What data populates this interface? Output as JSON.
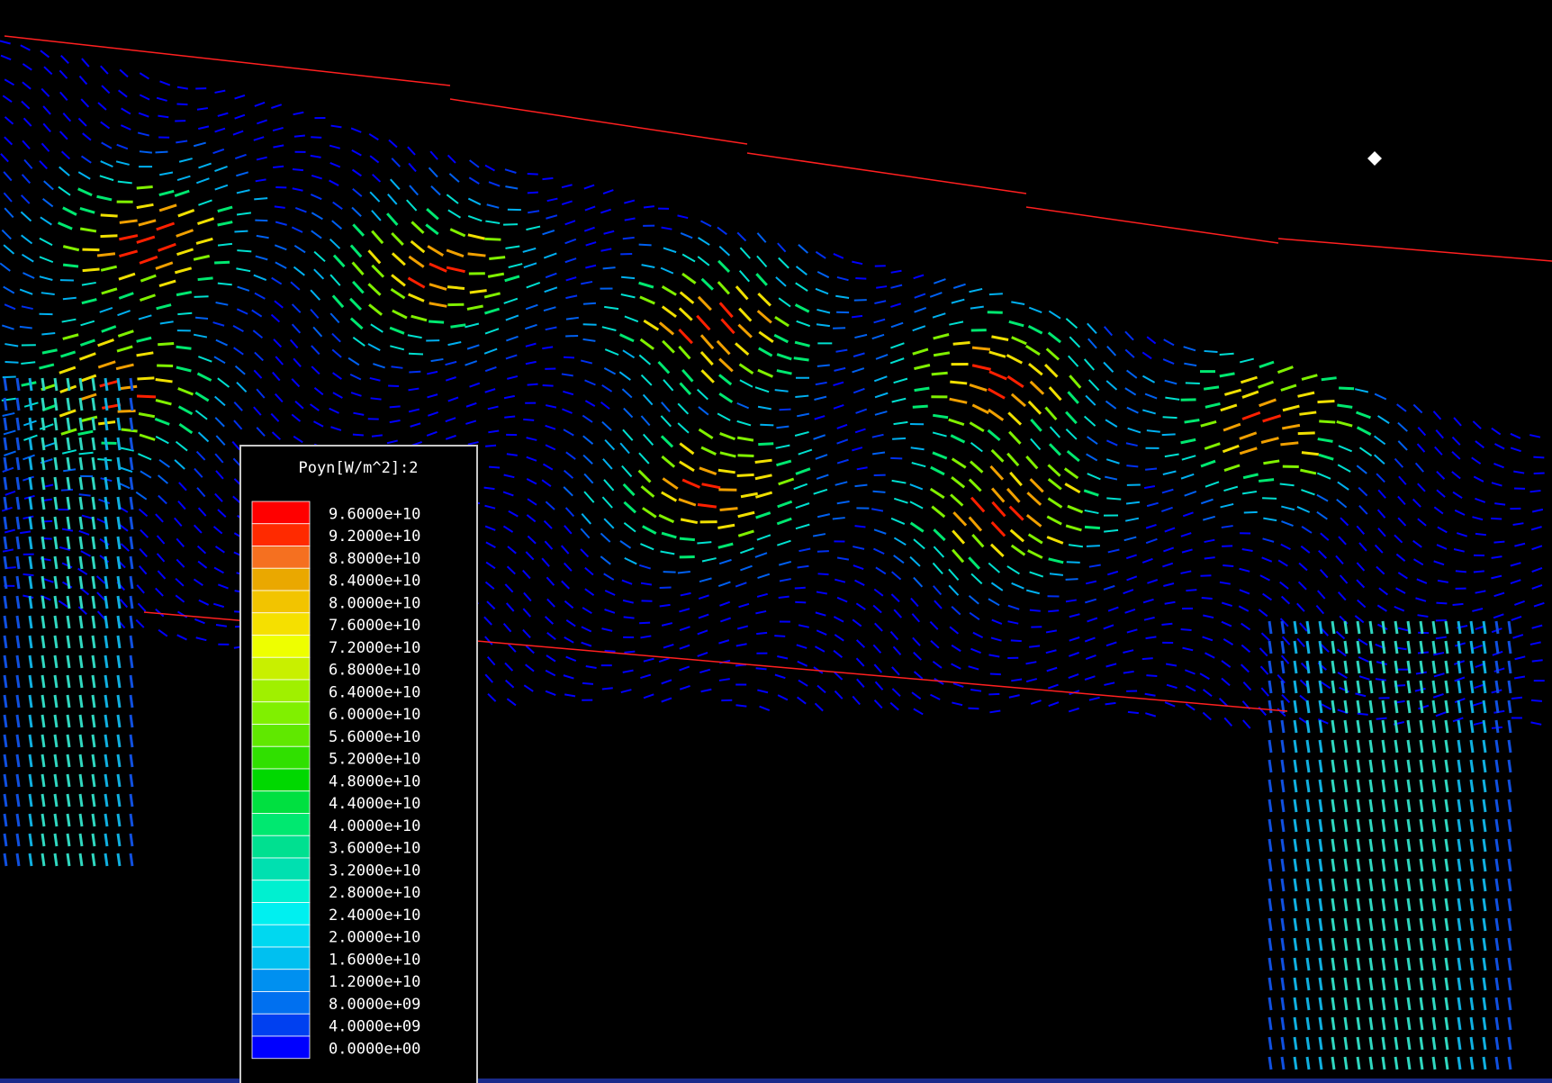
{
  "chart_data": {
    "type": "legend",
    "title": "Poyn[W/m^2]:2",
    "levels": [
      {
        "value": 96000000000,
        "label": "9.6000e+10",
        "color": "#ff0000"
      },
      {
        "value": 92000000000,
        "label": "9.2000e+10",
        "color": "#ff2a00"
      },
      {
        "value": 88000000000,
        "label": "8.8000e+10",
        "color": "#f57020"
      },
      {
        "value": 84000000000,
        "label": "8.4000e+10",
        "color": "#eaa800"
      },
      {
        "value": 80000000000,
        "label": "8.0000e+10",
        "color": "#f2c400"
      },
      {
        "value": 76000000000,
        "label": "7.6000e+10",
        "color": "#f5e000"
      },
      {
        "value": 72000000000,
        "label": "7.2000e+10",
        "color": "#eeff00"
      },
      {
        "value": 68000000000,
        "label": "6.8000e+10",
        "color": "#c8f000"
      },
      {
        "value": 64000000000,
        "label": "6.4000e+10",
        "color": "#a0f000"
      },
      {
        "value": 60000000000,
        "label": "6.0000e+10",
        "color": "#80f000"
      },
      {
        "value": 56000000000,
        "label": "5.6000e+10",
        "color": "#60e800"
      },
      {
        "value": 52000000000,
        "label": "5.2000e+10",
        "color": "#30e000"
      },
      {
        "value": 48000000000,
        "label": "4.8000e+10",
        "color": "#00d800"
      },
      {
        "value": 44000000000,
        "label": "4.4000e+10",
        "color": "#00e040"
      },
      {
        "value": 40000000000,
        "label": "4.0000e+10",
        "color": "#00e870"
      },
      {
        "value": 36000000000,
        "label": "3.6000e+10",
        "color": "#00e090"
      },
      {
        "value": 32000000000,
        "label": "3.2000e+10",
        "color": "#00e0b0"
      },
      {
        "value": 28000000000,
        "label": "2.8000e+10",
        "color": "#00f0d0"
      },
      {
        "value": 24000000000,
        "label": "2.4000e+10",
        "color": "#00f0f0"
      },
      {
        "value": 20000000000,
        "label": "2.0000e+10",
        "color": "#00d8f0"
      },
      {
        "value": 16000000000,
        "label": "1.6000e+10",
        "color": "#00c0f0"
      },
      {
        "value": 12000000000,
        "label": "1.2000e+10",
        "color": "#0090f0"
      },
      {
        "value": 8000000000,
        "label": "8.0000e+09",
        "color": "#0070f0"
      },
      {
        "value": 4000000000,
        "label": "4.0000e+09",
        "color": "#0040f0"
      },
      {
        "value": 0,
        "label": "0.0000e+00",
        "color": "#0000ff"
      }
    ]
  }
}
